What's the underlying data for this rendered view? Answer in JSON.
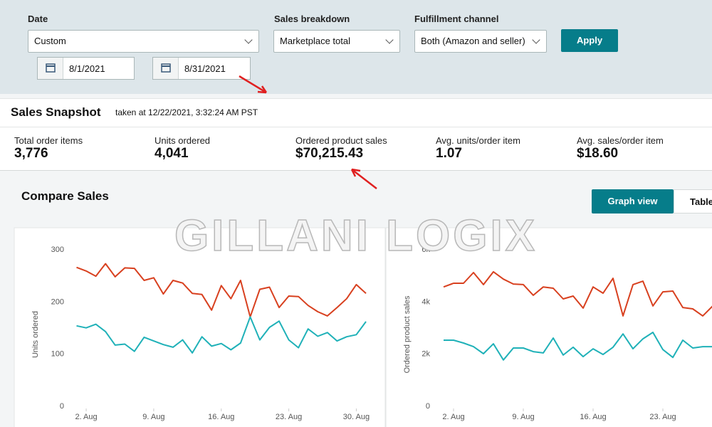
{
  "filters": {
    "date": {
      "label": "Date",
      "value": "Custom",
      "start": "8/1/2021",
      "end": "8/31/2021"
    },
    "breakdown": {
      "label": "Sales breakdown",
      "value": "Marketplace total"
    },
    "channel": {
      "label": "Fulfillment channel",
      "value": "Both (Amazon and seller)"
    },
    "apply": "Apply"
  },
  "snapshot": {
    "title": "Sales Snapshot",
    "taken": "taken at 12/22/2021, 3:32:24 AM PST",
    "metrics": [
      {
        "label": "Total order items",
        "value": "3,776"
      },
      {
        "label": "Units ordered",
        "value": "4,041"
      },
      {
        "label": "Ordered product sales",
        "value": "$70,215.43"
      },
      {
        "label": "Avg. units/order item",
        "value": "1.07"
      },
      {
        "label": "Avg. sales/order item",
        "value": "$18.60"
      }
    ]
  },
  "compare": {
    "title": "Compare Sales",
    "views": [
      "Graph view",
      "Table"
    ]
  },
  "watermark": "GILLANI LOGIX",
  "chart_data": [
    {
      "type": "line",
      "ylabel": "Units ordered",
      "x": [
        1,
        2,
        3,
        4,
        5,
        6,
        7,
        8,
        9,
        10,
        11,
        12,
        13,
        14,
        15,
        16,
        17,
        18,
        19,
        20,
        21,
        22,
        23,
        24,
        25,
        26,
        27,
        28,
        29,
        30,
        31
      ],
      "xlim": [
        1,
        31
      ],
      "xticks": [
        {
          "value": 2,
          "label": "2. Aug"
        },
        {
          "value": 9,
          "label": "9. Aug"
        },
        {
          "value": 16,
          "label": "16. Aug"
        },
        {
          "value": 23,
          "label": "23. Aug"
        },
        {
          "value": 30,
          "label": "30. Aug"
        }
      ],
      "ylim": [
        0,
        300
      ],
      "yticks": [
        0,
        100,
        200,
        300
      ],
      "series": [
        {
          "color": "#d8401f",
          "values": [
            265,
            258,
            248,
            272,
            247,
            264,
            263,
            240,
            245,
            214,
            240,
            235,
            215,
            213,
            183,
            230,
            205,
            240,
            170,
            223,
            227,
            188,
            210,
            209,
            192,
            180,
            172,
            188,
            205,
            232,
            215
          ]
        },
        {
          "color": "#1fb1b8",
          "values": [
            153,
            149,
            156,
            142,
            116,
            118,
            104,
            131,
            124,
            117,
            112,
            126,
            101,
            132,
            114,
            119,
            107,
            120,
            170,
            126,
            150,
            162,
            126,
            111,
            147,
            133,
            140,
            124,
            132,
            136,
            161
          ]
        }
      ]
    },
    {
      "type": "line",
      "ylabel": "Ordered product sales",
      "x": [
        1,
        2,
        3,
        4,
        5,
        6,
        7,
        8,
        9,
        10,
        11,
        12,
        13,
        14,
        15,
        16,
        17,
        18,
        19,
        20,
        21,
        22,
        23,
        24,
        25,
        26,
        27,
        28
      ],
      "xlim": [
        1,
        31
      ],
      "xticks": [
        {
          "value": 2,
          "label": "2. Aug"
        },
        {
          "value": 9,
          "label": "9. Aug"
        },
        {
          "value": 16,
          "label": "16. Aug"
        },
        {
          "value": 23,
          "label": "23. Aug"
        }
      ],
      "ylim": [
        0,
        6000
      ],
      "yticks": [
        0,
        {
          "value": 2000,
          "label": "2k"
        },
        {
          "value": 4000,
          "label": "4k"
        },
        {
          "value": 6000,
          "label": "6k"
        }
      ],
      "series": [
        {
          "color": "#d8401f",
          "values": [
            4550,
            4690,
            4690,
            5100,
            4640,
            5130,
            4850,
            4660,
            4640,
            4230,
            4550,
            4500,
            4090,
            4200,
            3740,
            4550,
            4310,
            4880,
            3440,
            4640,
            4770,
            3820,
            4360,
            4390,
            3760,
            3710,
            3440,
            3820
          ]
        },
        {
          "color": "#1fb1b8",
          "values": [
            2510,
            2510,
            2400,
            2260,
            1990,
            2370,
            1750,
            2210,
            2210,
            2070,
            2020,
            2590,
            1940,
            2240,
            1880,
            2180,
            1960,
            2240,
            2750,
            2180,
            2560,
            2810,
            2150,
            1850,
            2510,
            2210,
            2260,
            2260
          ]
        }
      ]
    }
  ]
}
